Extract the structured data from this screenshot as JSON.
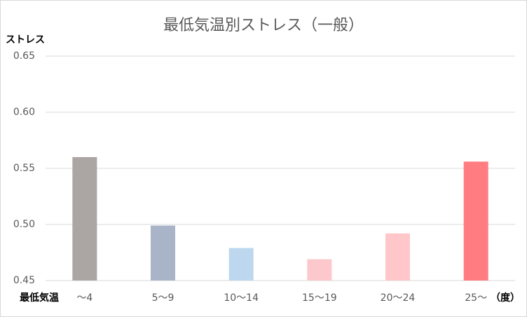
{
  "chart_data": {
    "type": "bar",
    "title": "最低気温別ストレス（一般）",
    "y_label": "ストレス",
    "x_label": "最低気温",
    "x_unit": "（度）",
    "categories": [
      "～4",
      "5～9",
      "10～14",
      "15～19",
      "20～24",
      "25～"
    ],
    "values": [
      0.56,
      0.499,
      0.479,
      0.469,
      0.492,
      0.556
    ],
    "colors": [
      "#aba5a3",
      "#a9b4c8",
      "#bdd7ee",
      "#fcc8cb",
      "#ffc7c9",
      "#ff7c80"
    ],
    "ylim": [
      0.45,
      0.65
    ],
    "yticks": [
      0.45,
      {
        "value": 0.5,
        "label": "0.50"
      },
      0.55,
      {
        "value": 0.6,
        "label": "0.60"
      },
      0.65
    ],
    "grid": true
  }
}
